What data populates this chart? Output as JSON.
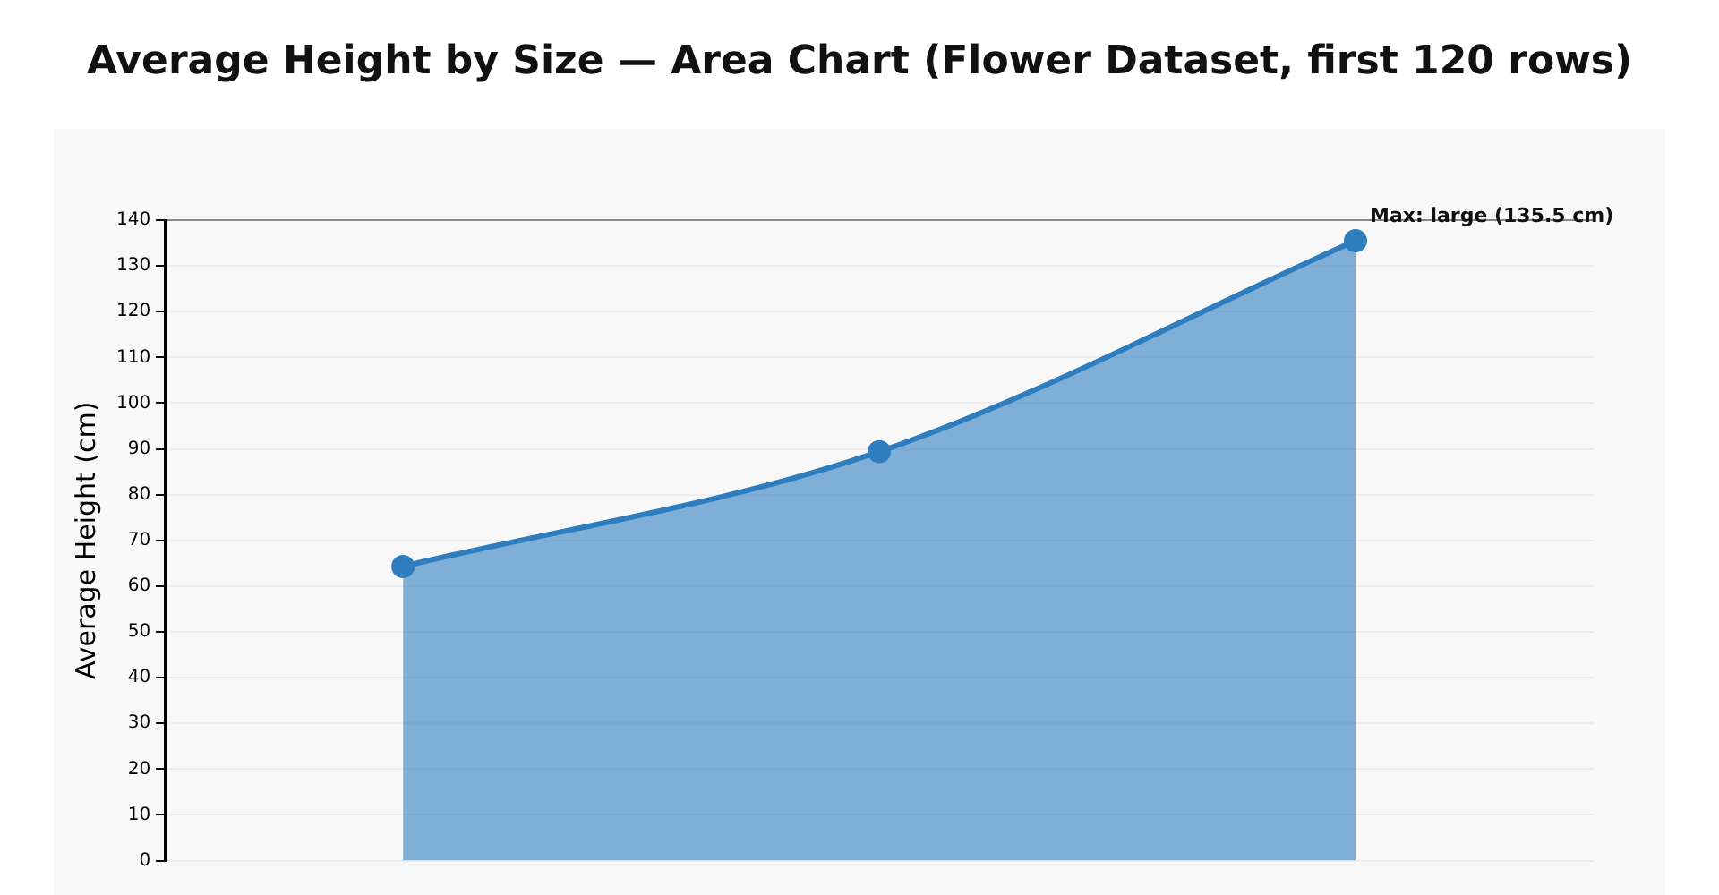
{
  "chart_data": {
    "type": "area",
    "title": "Average Height by Size — Area Chart (Flower Dataset, first 120 rows)",
    "ylabel": "Average Height (cm)",
    "categories": [
      null,
      null,
      null
    ],
    "series": [
      {
        "color": "#2e7ebf",
        "values": [
          64.3,
          89.4,
          135.5
        ]
      }
    ],
    "ylim": [
      0,
      140
    ],
    "yticks": [
      0,
      10,
      20,
      30,
      40,
      50,
      60,
      70,
      80,
      90,
      100,
      110,
      120,
      130,
      140
    ],
    "grid": "y",
    "marker": "circle",
    "annotations": [
      "Max: large (135.5 cm)"
    ]
  }
}
